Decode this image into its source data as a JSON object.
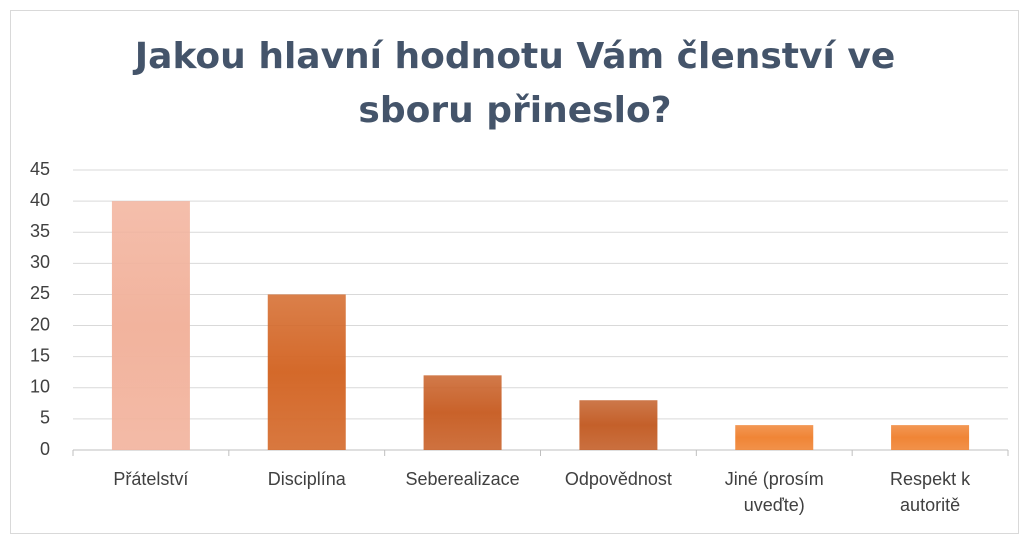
{
  "chart_data": {
    "type": "bar",
    "title": "Jakou hlavní hodnotu Vám členství ve sboru přineslo?",
    "categories": [
      "Přátelství",
      "Disciplína",
      "Seberealizace",
      "Odpovědnost",
      "Jiné (prosím uveďte)",
      "Respekt k autoritě"
    ],
    "values": [
      40,
      25,
      12,
      8,
      4,
      4
    ],
    "colors": [
      "#f2b39d",
      "#d4692a",
      "#c9622a",
      "#c4602a",
      "#f08536",
      "#f08536"
    ],
    "ylim": [
      0,
      45
    ],
    "yticks": [
      0,
      5,
      10,
      15,
      20,
      25,
      30,
      35,
      40,
      45
    ],
    "grid": true
  }
}
